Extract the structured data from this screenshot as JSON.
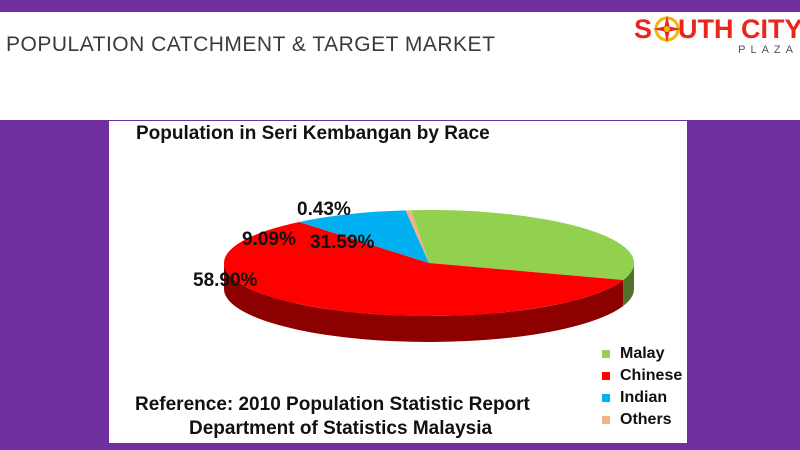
{
  "slide": {
    "title": "POPULATION CATCHMENT & TARGET MARKET"
  },
  "logo": {
    "text_before": "S",
    "text_after": "UTH CITY",
    "subtitle": "PLAZA",
    "icon": "compass-icon",
    "color": "#e8261c"
  },
  "colors": {
    "background": "#7030a0",
    "header": "#ffffff"
  },
  "chart_data": {
    "type": "pie",
    "title": "Population in Seri Kembangan by Race",
    "categories": [
      "Malay",
      "Chinese",
      "Indian",
      "Others"
    ],
    "values": [
      31.59,
      58.9,
      9.09,
      0.43
    ],
    "labels": [
      "31.59%",
      "58.90%",
      "9.09%",
      "0.43%"
    ],
    "colors": [
      "#92d050",
      "#ff0000",
      "#00b0f0",
      "#f4b183"
    ],
    "legend_position": "bottom-right",
    "three_d": true,
    "annotation": [
      "Reference:  2010 Population Statistic Report",
      "Department of Statistics Malaysia"
    ]
  }
}
